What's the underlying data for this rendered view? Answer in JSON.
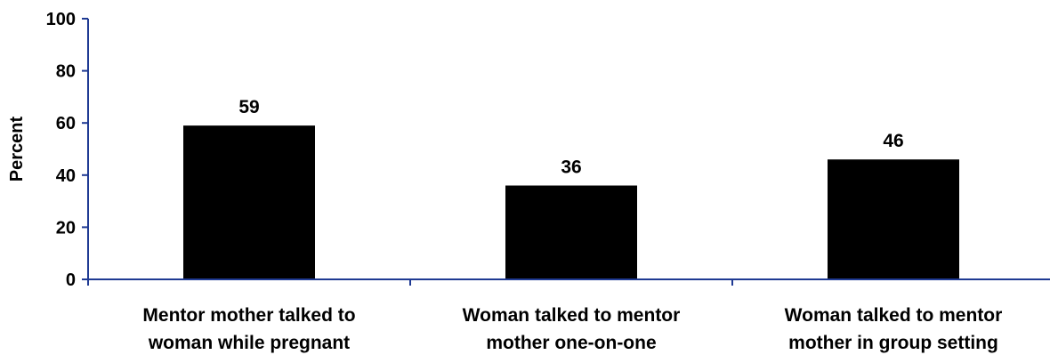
{
  "chart_data": {
    "type": "bar",
    "categories": [
      [
        "Mentor mother talked to",
        "woman while pregnant"
      ],
      [
        "Woman talked to mentor",
        "mother one-on-one"
      ],
      [
        "Woman talked to mentor",
        "mother in group setting"
      ]
    ],
    "values": [
      59,
      36,
      46
    ],
    "data_labels": [
      "59",
      "36",
      "46"
    ],
    "ylabel": "Percent",
    "xlabel": "",
    "title": "",
    "ylim": [
      0,
      100
    ],
    "yticks": [
      0,
      20,
      40,
      60,
      80,
      100
    ],
    "grid": false,
    "legend": "none",
    "bar_color": "#000000",
    "axis_color": "#1f3a93"
  }
}
